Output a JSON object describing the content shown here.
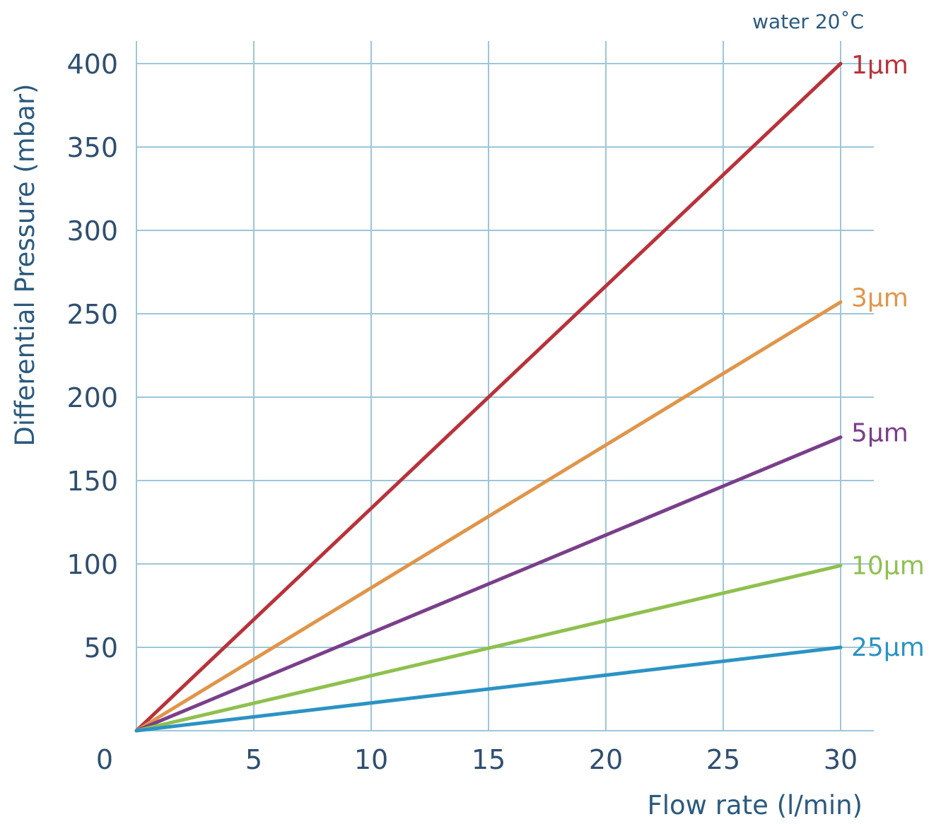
{
  "chart_data": {
    "type": "line",
    "annotation": "water 20˚C",
    "xlabel": "Flow rate (l/min)",
    "ylabel": "Differential Pressure (mbar)",
    "xlim": [
      0,
      30
    ],
    "ylim": [
      0,
      400
    ],
    "origin_label": "0",
    "x_ticks": [
      5,
      10,
      15,
      20,
      25,
      30
    ],
    "y_ticks": [
      50,
      100,
      150,
      200,
      250,
      300,
      350,
      400
    ],
    "grid": true,
    "x": [
      0,
      30
    ],
    "series": [
      {
        "name": "1µm",
        "values": [
          0,
          400
        ],
        "color": "#b8323a"
      },
      {
        "name": "3µm",
        "values": [
          0,
          257
        ],
        "color": "#e0954a"
      },
      {
        "name": "5µm",
        "values": [
          0,
          176
        ],
        "color": "#7a3f8a"
      },
      {
        "name": "10µm",
        "values": [
          0,
          99
        ],
        "color": "#8fc04f"
      },
      {
        "name": "25µm",
        "values": [
          0,
          50
        ],
        "color": "#2b93c4"
      }
    ]
  }
}
